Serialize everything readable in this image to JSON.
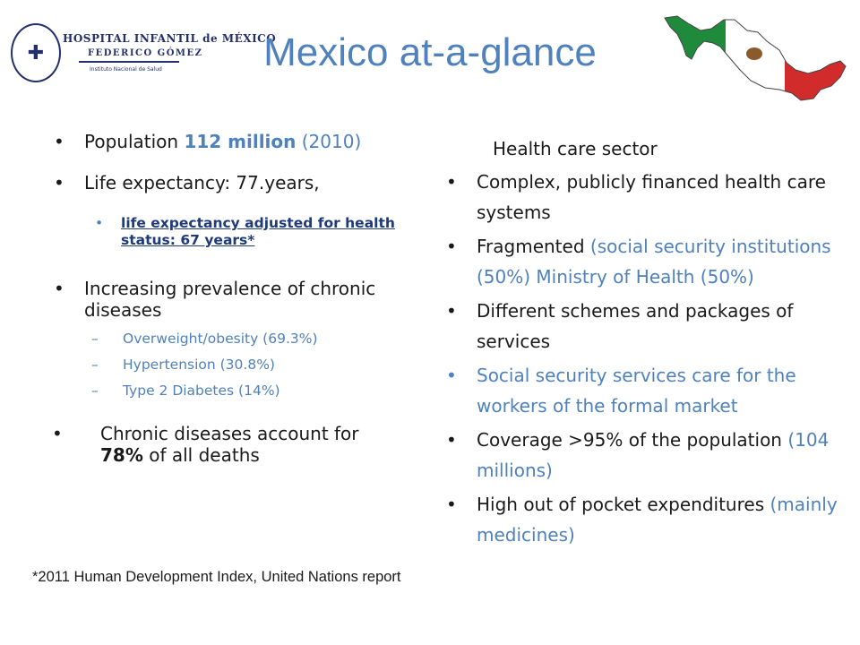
{
  "logo": {
    "line1": "HOSPITAL INFANTIL de MÉXICO",
    "line2": "FEDERICO GÓMEZ",
    "line3": "Instituto Nacional de Salud",
    "icon": "hospital-seal-icon"
  },
  "title": "Mexico at-a-glance",
  "flag_map": {
    "icon": "mexico-flag-map-icon",
    "colors": {
      "green": "#1f8a3b",
      "white": "#ffffff",
      "red": "#d12b2b"
    }
  },
  "left": {
    "population": {
      "label": "Population ",
      "value": "112 million",
      "year": " (2010)"
    },
    "life_expectancy": "Life expectancy: 77.years,",
    "life_adjusted": "life expectancy adjusted  for health status:  67 years*",
    "chronic_heading": "Increasing prevalence of chronic diseases",
    "chronic_items": [
      "Overweight/obesity (69.3%)",
      "Hypertension (30.8%)",
      "Type 2 Diabetes  (14%)"
    ],
    "deaths": {
      "prefix": "Chronic diseases account for ",
      "value": "78%",
      "suffix": " of all deaths"
    }
  },
  "right": {
    "heading": "Health care sector",
    "b1": "Complex, publicly financed health care systems",
    "b2_prefix": "Fragmented ",
    "b2_detail": "(social security institutions (50%) Ministry of Health (50%)",
    "b3": "Different schemes and packages of services",
    "b4": "Social security services care for the  workers of the formal market",
    "b5_prefix": "Coverage >95% of the population ",
    "b5_detail": "(104 millions)",
    "b6_prefix": "High out of pocket expenditures ",
    "b6_detail": "(mainly medicines)"
  },
  "footnote": "*2011 Human Development Index, United Nations report",
  "colors": {
    "accent": "#4f81bd",
    "navy": "#1f3a78"
  }
}
